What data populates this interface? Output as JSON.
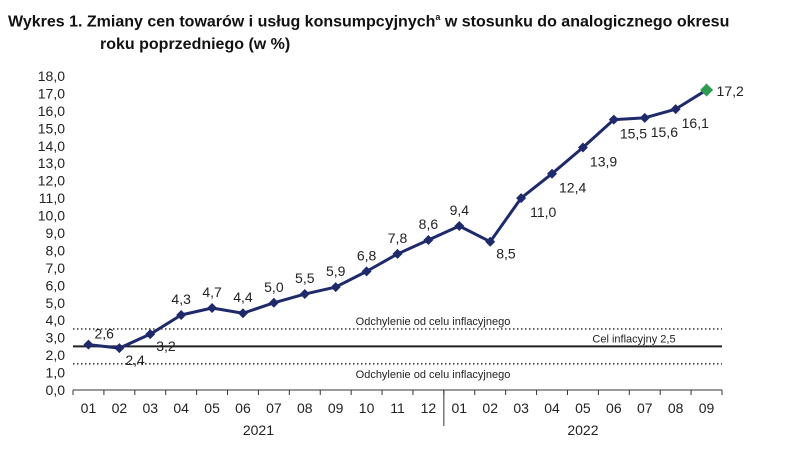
{
  "title": {
    "line1_main": "Wykres 1. Zmiany cen towarów i usług konsumpcyjnych",
    "line1_sup": "a",
    "line1_end": " w stosunku do analogicznego okresu",
    "line2": "roku poprzedniego (w %)"
  },
  "chart_data": {
    "type": "line",
    "title": "Wykres 1. Zmiany cen towarów i usług konsumpcyjnych w stosunku do analogicznego okresu roku poprzedniego (w %)",
    "categories": [
      "01",
      "02",
      "03",
      "04",
      "05",
      "06",
      "07",
      "08",
      "09",
      "10",
      "11",
      "12",
      "01",
      "02",
      "03",
      "04",
      "05",
      "06",
      "07",
      "08",
      "09"
    ],
    "year_groups": [
      {
        "label": "2021",
        "count": 12
      },
      {
        "label": "2022",
        "count": 9
      }
    ],
    "series": [
      {
        "values": [
          2.6,
          2.4,
          3.2,
          4.3,
          4.7,
          4.4,
          5.0,
          5.5,
          5.9,
          6.8,
          7.8,
          8.6,
          9.4,
          8.5,
          11.0,
          12.4,
          13.9,
          15.5,
          15.6,
          16.1,
          17.2
        ],
        "labels": [
          "2,6",
          "2,4",
          "3,2",
          "4,3",
          "4,7",
          "4,4",
          "5,0",
          "5,5",
          "5,9",
          "6,8",
          "7,8",
          "8,6",
          "9,4",
          "8,5",
          "11,0",
          "12,4",
          "13,9",
          "15,5",
          "15,6",
          "16,1",
          "17,2"
        ],
        "color": "#1f2a6b",
        "last_point_color": "#2e9c4f"
      }
    ],
    "ylim": [
      0,
      18
    ],
    "yticks": [
      "0,0",
      "1,0",
      "2,0",
      "3,0",
      "4,0",
      "5,0",
      "6,0",
      "7,0",
      "8,0",
      "9,0",
      "10,0",
      "11,0",
      "12,0",
      "13,0",
      "14,0",
      "15,0",
      "16,0",
      "17,0",
      "18,0"
    ],
    "reference_lines": [
      {
        "value": 3.5,
        "style": "dotted",
        "label": "Odchylenie od celu inflacyjnego"
      },
      {
        "value": 2.5,
        "style": "solid",
        "label": "Cel inflacyjny 2,5"
      },
      {
        "value": 1.5,
        "style": "dotted",
        "label": "Odchylenie od celu inflacyjnego"
      }
    ],
    "grid": false,
    "xlabel": "",
    "ylabel": ""
  }
}
